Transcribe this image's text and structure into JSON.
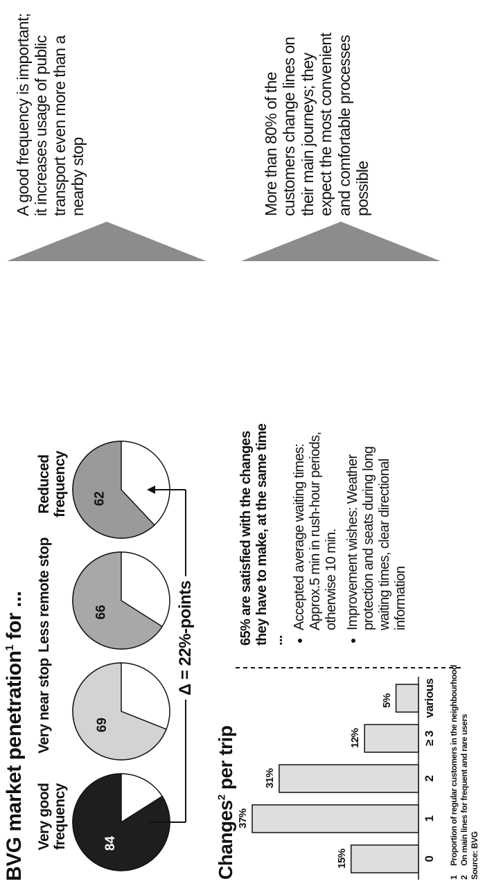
{
  "title": "BVG market penetration",
  "title_sup": "1",
  "title_suffix": " for ...",
  "chart_data": [
    {
      "type": "pie",
      "title": "BVG market penetration¹ for ...",
      "categories": [
        "Very good frequency",
        "Very near stop",
        "Less remote stop",
        "Reduced frequency"
      ],
      "values": [
        84,
        69,
        66,
        62
      ],
      "unit": "%",
      "annotation": "Δ = 22%-points"
    },
    {
      "type": "bar",
      "title": "Changes² per trip",
      "categories": [
        "0",
        "1",
        "2",
        "≥ 3",
        "various"
      ],
      "values": [
        15,
        37,
        31,
        12,
        5
      ],
      "value_labels": [
        "15%",
        "37%",
        "31%",
        "12%",
        "5%"
      ],
      "unit": "%"
    }
  ],
  "pies": [
    {
      "label": "Very good frequency",
      "value": 84,
      "value_label": "84",
      "color": "#1e1e1e",
      "text_color": "#ffffff"
    },
    {
      "label": "Very near stop",
      "value": 69,
      "value_label": "69",
      "color": "#d3d3d3",
      "text_color": "#111111"
    },
    {
      "label": "Less remote stop",
      "value": 66,
      "value_label": "66",
      "color": "#a8a8a8",
      "text_color": "#111111"
    },
    {
      "label": "Reduced frequency",
      "value": 62,
      "value_label": "62",
      "color": "#9a9a9a",
      "text_color": "#111111"
    }
  ],
  "delta_label": "Δ = 22%-points",
  "bars_title": "Changes",
  "bars_title_sup": "2",
  "bars_title_suffix": " per trip",
  "bar_color": "#dedede",
  "info": {
    "headline": "65% are satisfied with the changes they have to make, at the same time ...",
    "bullets": [
      "Accepted average waiting times: Approx.5 min in rush-hour periods, otherwise 10 min.",
      "Improvement wishes: Weather protection and seats during long waiting times, clear directional information"
    ]
  },
  "conclusions": [
    "A good frequency is important; it increases usage of public transport even more than a nearby stop",
    "More than 80% of the customers change lines on their main journeys; they expect the most convenient and comfortable processes possible"
  ],
  "arrow_color": "#8c8c8c",
  "footnotes": [
    {
      "num": "1",
      "text": "Proportion of regular customers in the neighbourhood"
    },
    {
      "num": "2",
      "text": "On main lines for frequent and rare users"
    }
  ],
  "source": "Source: BVG"
}
